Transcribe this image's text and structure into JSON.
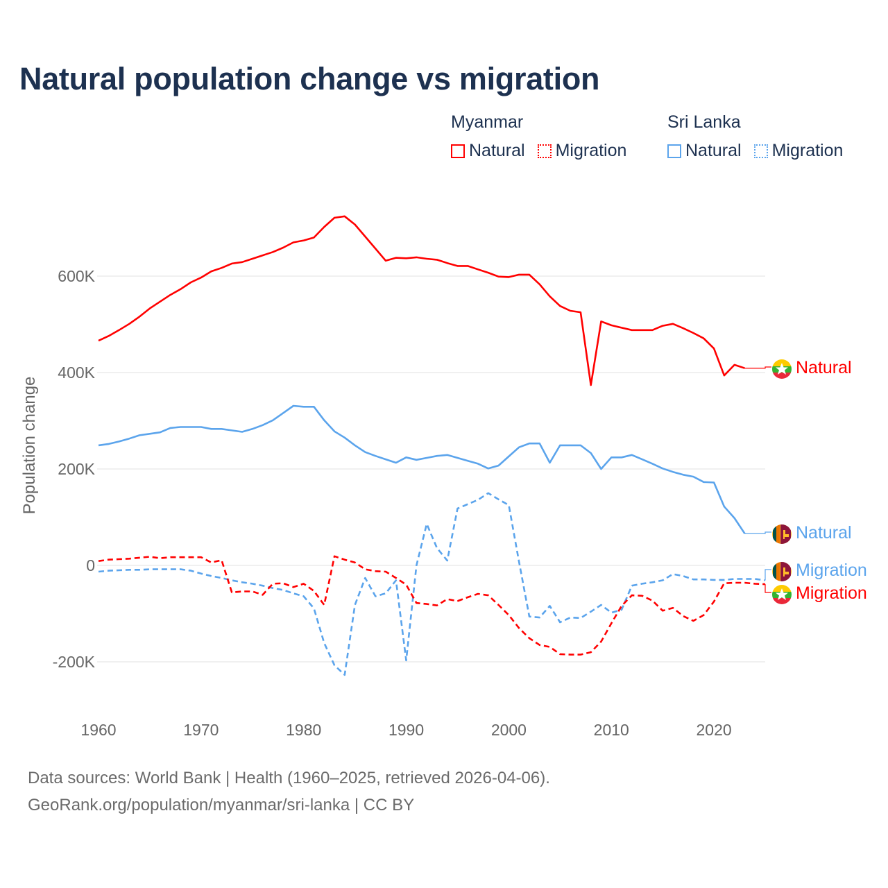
{
  "title": "Natural population change vs migration",
  "legend": [
    {
      "country": "Myanmar",
      "items": [
        {
          "label": "Natural",
          "style": "solid",
          "color": "#ff0000"
        },
        {
          "label": "Migration",
          "style": "dotted",
          "color": "#ff0000"
        }
      ]
    },
    {
      "country": "Sri Lanka",
      "items": [
        {
          "label": "Natural",
          "style": "solid",
          "color": "#5ba4ec"
        },
        {
          "label": "Migration",
          "style": "dotted",
          "color": "#5ba4ec"
        }
      ]
    }
  ],
  "footer": {
    "line1": "Data sources: World Bank | Health (1960–2025, retrieved 2026-04-06).",
    "line2": "GeoRank.org/population/myanmar/sri-lanka | CC BY"
  },
  "chart_data": {
    "type": "line",
    "title": "Natural population change vs migration",
    "xlabel": "",
    "ylabel": "Population change",
    "xlim": [
      1960,
      2025
    ],
    "ylim": [
      -300000,
      750000
    ],
    "x_ticks": [
      1960,
      1970,
      1980,
      1990,
      2000,
      2010,
      2020
    ],
    "x_tick_labels": [
      "1960",
      "1970",
      "1980",
      "1990",
      "2000",
      "2010",
      "2020"
    ],
    "y_ticks": [
      -200000,
      0,
      200000,
      400000,
      600000
    ],
    "y_tick_labels": [
      "-200K",
      "0",
      "200K",
      "400K",
      "600K"
    ],
    "grid": true,
    "legend_position": "top-right",
    "value_unit": "thousands",
    "series": [
      {
        "name": "Myanmar Natural",
        "end_label": "Natural",
        "country": "Myanmar",
        "flag": "myanmar-flag",
        "color": "#ff0000",
        "dashed": false,
        "start_year": 1960,
        "values": [
          466,
          476,
          488,
          501,
          516,
          533,
          547,
          561,
          573,
          587,
          597,
          610,
          617,
          626,
          629,
          636,
          643,
          650,
          659,
          670,
          674,
          680,
          702,
          721,
          724,
          707,
          682,
          657,
          632,
          638,
          637,
          639,
          636,
          634,
          627,
          621,
          621,
          614,
          607,
          599,
          598,
          603,
          603,
          583,
          558,
          538,
          528,
          525,
          374,
          506,
          498,
          493,
          488,
          488,
          488,
          497,
          501,
          492,
          482,
          471,
          450,
          394,
          416,
          409
        ]
      },
      {
        "name": "Sri Lanka Natural",
        "end_label": "Natural",
        "country": "Sri Lanka",
        "flag": "sri-lanka-flag",
        "color": "#5ba4ec",
        "dashed": false,
        "start_year": 1960,
        "values": [
          249,
          252,
          257,
          263,
          270,
          273,
          276,
          285,
          287,
          287,
          287,
          283,
          283,
          280,
          277,
          283,
          291,
          301,
          316,
          331,
          329,
          329,
          301,
          278,
          265,
          249,
          235,
          227,
          220,
          213,
          224,
          219,
          223,
          227,
          229,
          223,
          217,
          211,
          201,
          207,
          226,
          245,
          253,
          253,
          213,
          249,
          249,
          249,
          233,
          200,
          224,
          224,
          229,
          220,
          211,
          201,
          194,
          188,
          184,
          173,
          172,
          122,
          98,
          66
        ]
      },
      {
        "name": "Sri Lanka Migration",
        "end_label": "Migration",
        "country": "Sri Lanka",
        "flag": "sri-lanka-flag",
        "color": "#5ba4ec",
        "dashed": true,
        "start_year": 1960,
        "values": [
          -13,
          -11,
          -10,
          -9,
          -9,
          -8,
          -8,
          -8,
          -8,
          -11,
          -17,
          -22,
          -26,
          -31,
          -35,
          -38,
          -42,
          -47,
          -51,
          -58,
          -64,
          -89,
          -161,
          -207,
          -227,
          -82,
          -26,
          -64,
          -58,
          -31,
          -197,
          0,
          86,
          36,
          10,
          118,
          127,
          136,
          150,
          137,
          125,
          7,
          -106,
          -108,
          -84,
          -118,
          -108,
          -109,
          -96,
          -82,
          -98,
          -92,
          -42,
          -38,
          -35,
          -31,
          -18,
          -22,
          -29,
          -29,
          -30,
          -30,
          -28,
          -28,
          -28,
          -31
        ]
      },
      {
        "name": "Myanmar Migration",
        "end_label": "Migration",
        "country": "Myanmar",
        "flag": "myanmar-flag",
        "color": "#ff0000",
        "dashed": true,
        "start_year": 1960,
        "values": [
          9,
          12,
          13,
          14,
          16,
          18,
          15,
          17,
          17,
          17,
          17,
          6,
          11,
          -56,
          -54,
          -54,
          -61,
          -38,
          -37,
          -45,
          -38,
          -53,
          -82,
          19,
          12,
          6,
          -8,
          -12,
          -13,
          -26,
          -40,
          -78,
          -80,
          -83,
          -70,
          -74,
          -66,
          -59,
          -62,
          -82,
          -103,
          -130,
          -151,
          -165,
          -169,
          -184,
          -185,
          -185,
          -180,
          -158,
          -120,
          -84,
          -62,
          -63,
          -73,
          -94,
          -88,
          -105,
          -115,
          -103,
          -75,
          -37,
          -36,
          -36,
          -38,
          -39
        ]
      }
    ]
  }
}
